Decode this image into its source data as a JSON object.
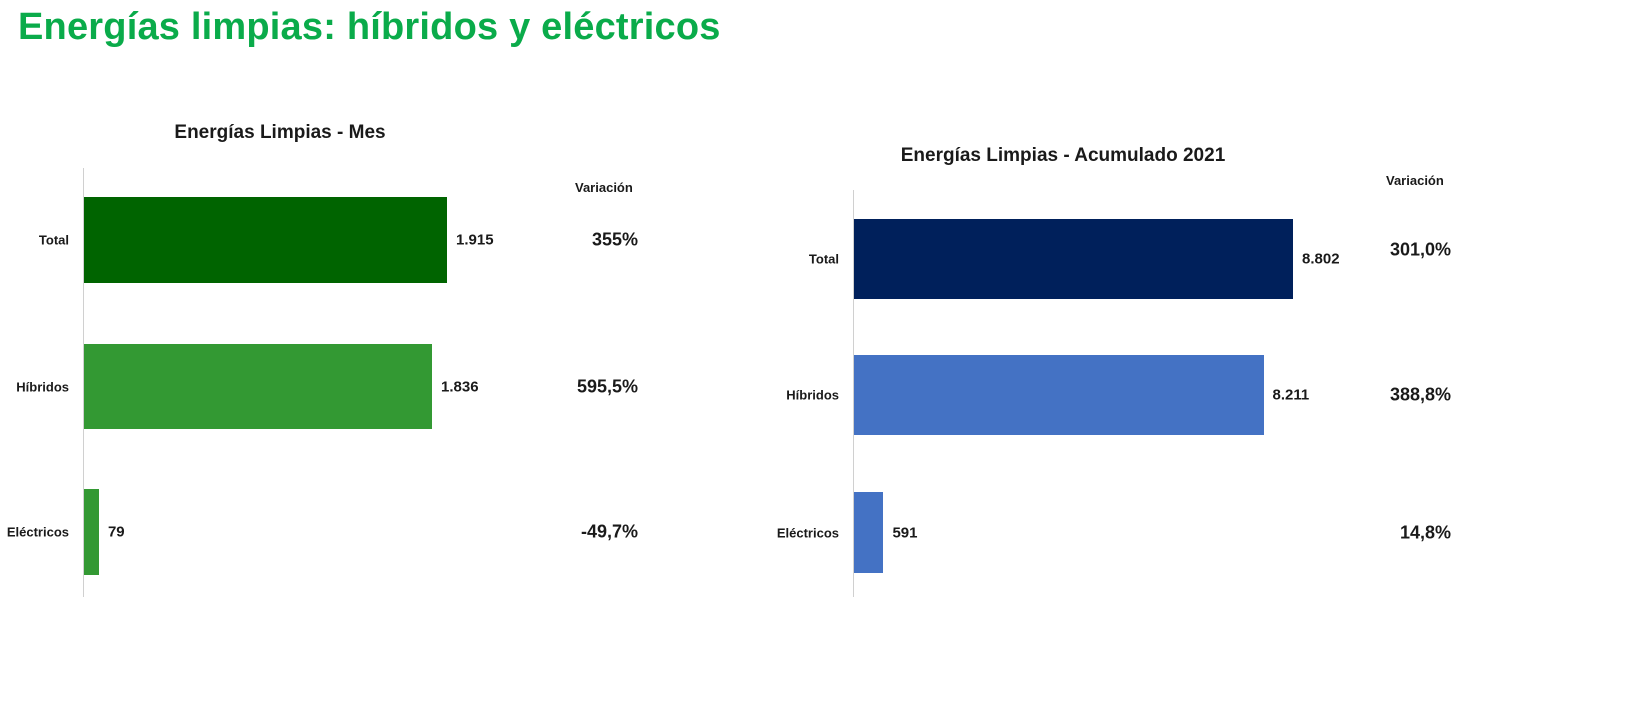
{
  "header": {
    "title": "Energías limpias: híbridos y eléctricos"
  },
  "colors": {
    "title": "#0aab4a",
    "mes_total": "#006400",
    "mes_segment": "#339933",
    "acum_total": "#00205b",
    "acum_segment": "#4472c4",
    "axis": "#d0d0d0"
  },
  "chart_data": [
    {
      "type": "bar",
      "orientation": "horizontal",
      "title": "Energías  Limpias - Mes",
      "categories": [
        "Total",
        "Híbridos",
        "Eléctricos"
      ],
      "values": [
        1915,
        1836,
        79
      ],
      "value_labels": [
        "1.915",
        "1.836",
        "79"
      ],
      "variation_header": "Variación",
      "variation": [
        "355%",
        "595,5%",
        "-49,7%"
      ],
      "xlabel": "",
      "ylabel": "",
      "grid": false,
      "legend": null
    },
    {
      "type": "bar",
      "orientation": "horizontal",
      "title": "Energías  Limpias - Acumulado 2021",
      "categories": [
        "Total",
        "Híbridos",
        "Eléctricos"
      ],
      "values": [
        8802,
        8211,
        591
      ],
      "value_labels": [
        "8.802",
        "8.211",
        "591"
      ],
      "variation_header": "Variación",
      "variation": [
        "301,0%",
        "388,8%",
        "14,8%"
      ],
      "xlabel": "",
      "ylabel": "",
      "grid": false,
      "legend": null
    }
  ]
}
